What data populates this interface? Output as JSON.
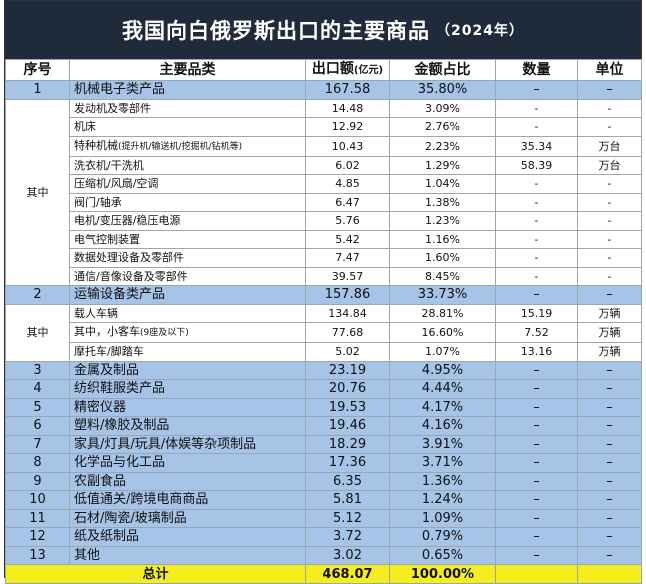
{
  "title": {
    "main": "我国向白俄罗斯出口的主要商品",
    "year": "（2024年）"
  },
  "headers": {
    "index": "序号",
    "name": "主要品类",
    "value": "出口额",
    "value_unit": "(亿元)",
    "share": "金额占比",
    "qty": "数量",
    "unit": "单位"
  },
  "group_label": "其中",
  "rows": [
    {
      "idx": "1",
      "name": "机械电子类产品",
      "value": "167.58",
      "share": "35.80%",
      "qty": "–",
      "unit": "–"
    },
    {
      "name": "发动机及零部件",
      "value": "14.48",
      "share": "3.09%",
      "qty": "-",
      "unit": "-"
    },
    {
      "name": "机床",
      "value": "12.92",
      "share": "2.76%",
      "qty": "-",
      "unit": "-"
    },
    {
      "name": "特种机械",
      "name_note": "(提升机/输送机/挖掘机/钻机等)",
      "value": "10.43",
      "share": "2.23%",
      "qty": "35.34",
      "unit": "万台"
    },
    {
      "name": "洗衣机/干洗机",
      "value": "6.02",
      "share": "1.29%",
      "qty": "58.39",
      "unit": "万台"
    },
    {
      "name": "压缩机/风扇/空调",
      "value": "4.85",
      "share": "1.04%",
      "qty": "-",
      "unit": "-"
    },
    {
      "name": "阀门/轴承",
      "value": "6.47",
      "share": "1.38%",
      "qty": "-",
      "unit": "-"
    },
    {
      "name": "电机/变压器/稳压电源",
      "value": "5.76",
      "share": "1.23%",
      "qty": "-",
      "unit": "-"
    },
    {
      "name": "电气控制装置",
      "value": "5.42",
      "share": "1.16%",
      "qty": "-",
      "unit": "-"
    },
    {
      "name": "数据处理设备及零部件",
      "value": "7.47",
      "share": "1.60%",
      "qty": "-",
      "unit": "-"
    },
    {
      "name": "通信/音像设备及零部件",
      "value": "39.57",
      "share": "8.45%",
      "qty": "-",
      "unit": "-"
    },
    {
      "idx": "2",
      "name": "运输设备类产品",
      "value": "157.86",
      "share": "33.73%",
      "qty": "–",
      "unit": "–"
    },
    {
      "name": "载人车辆",
      "value": "134.84",
      "share": "28.81%",
      "qty": "15.19",
      "unit": "万辆"
    },
    {
      "name": "其中，小客车",
      "name_note": "(9座及以下)",
      "value": "77.68",
      "share": "16.60%",
      "qty": "7.52",
      "unit": "万辆"
    },
    {
      "name": "摩托车/脚踏车",
      "value": "5.02",
      "share": "1.07%",
      "qty": "13.16",
      "unit": "万辆"
    },
    {
      "idx": "3",
      "name": "金属及制品",
      "value": "23.19",
      "share": "4.95%",
      "qty": "–",
      "unit": "–"
    },
    {
      "idx": "4",
      "name": "纺织鞋服类产品",
      "value": "20.76",
      "share": "4.44%",
      "qty": "–",
      "unit": "–"
    },
    {
      "idx": "5",
      "name": "精密仪器",
      "value": "19.53",
      "share": "4.17%",
      "qty": "–",
      "unit": "–"
    },
    {
      "idx": "6",
      "name": "塑料/橡胶及制品",
      "value": "19.46",
      "share": "4.16%",
      "qty": "–",
      "unit": "–"
    },
    {
      "idx": "7",
      "name": "家具/灯具/玩具/体娱等杂项制品",
      "value": "18.29",
      "share": "3.91%",
      "qty": "–",
      "unit": "–"
    },
    {
      "idx": "8",
      "name": "化学品与化工品",
      "value": "17.36",
      "share": "3.71%",
      "qty": "–",
      "unit": "–"
    },
    {
      "idx": "9",
      "name": "农副食品",
      "value": "6.35",
      "share": "1.36%",
      "qty": "–",
      "unit": "–"
    },
    {
      "idx": "10",
      "name": "低值通关/跨境电商商品",
      "value": "5.81",
      "share": "1.24%",
      "qty": "–",
      "unit": "–"
    },
    {
      "idx": "11",
      "name": "石材/陶瓷/玻璃制品",
      "value": "5.12",
      "share": "1.09%",
      "qty": "–",
      "unit": "–"
    },
    {
      "idx": "12",
      "name": "纸及纸制品",
      "value": "3.72",
      "share": "0.79%",
      "qty": "–",
      "unit": "–"
    },
    {
      "idx": "13",
      "name": "其他",
      "value": "3.02",
      "share": "0.65%",
      "qty": "–",
      "unit": "–"
    }
  ],
  "total": {
    "label": "总计",
    "value": "468.07",
    "share": "100.00%"
  }
}
